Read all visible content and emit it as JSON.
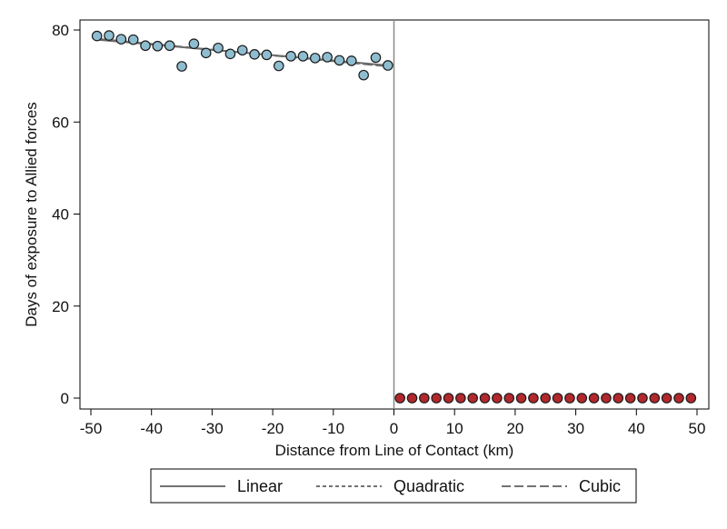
{
  "chart_data": {
    "type": "scatter",
    "title": "",
    "xlabel": "Distance from Line of Contact (km)",
    "ylabel": "Days of exposure to Allied forces",
    "xlim": [
      -50,
      50
    ],
    "ylim": [
      0,
      80
    ],
    "xticks": [
      "-50",
      "-40",
      "-30",
      "-20",
      "-10",
      "0",
      "10",
      "20",
      "30",
      "40",
      "50"
    ],
    "yticks": [
      "0",
      "20",
      "40",
      "60",
      "80"
    ],
    "cutoff": 0,
    "grid": false,
    "legend_position": "bottom",
    "series": [
      {
        "color": "#8fbdd0",
        "x": [
          -49,
          -47,
          -45,
          -43,
          -41,
          -39,
          -37,
          -35,
          -33,
          -31,
          -29,
          -27,
          -25,
          -23,
          -21,
          -19,
          -17,
          -15,
          -13,
          -11,
          -9,
          -7,
          -5,
          -3,
          -1
        ],
        "y": [
          78.7,
          78.8,
          78.0,
          77.9,
          76.6,
          76.5,
          76.6,
          72.1,
          77.0,
          75.0,
          76.1,
          74.8,
          75.6,
          74.7,
          74.6,
          72.2,
          74.3,
          74.3,
          73.9,
          74.1,
          73.4,
          73.3,
          70.2,
          74.0,
          72.3
        ]
      },
      {
        "color": "#b2282c",
        "x": [
          1,
          3,
          5,
          7,
          9,
          11,
          13,
          15,
          17,
          19,
          21,
          23,
          25,
          27,
          29,
          31,
          33,
          35,
          37,
          39,
          41,
          43,
          45,
          47,
          49
        ],
        "y": [
          0,
          0,
          0,
          0,
          0,
          0,
          0,
          0,
          0,
          0,
          0,
          0,
          0,
          0,
          0,
          0,
          0,
          0,
          0,
          0,
          0,
          0,
          0,
          0,
          0
        ]
      }
    ],
    "fits": [
      {
        "name": "Linear",
        "style": "solid",
        "x": [
          -49,
          -1
        ],
        "y": [
          77.9,
          72.3
        ]
      },
      {
        "name": "Quadratic",
        "style": "short-dash",
        "x": [
          -49,
          -1
        ],
        "y": [
          78.0,
          72.2
        ]
      },
      {
        "name": "Cubic",
        "style": "long-dash",
        "x": [
          -49,
          -1
        ],
        "y": [
          78.1,
          72.1
        ]
      }
    ],
    "legend": [
      "Linear",
      "Quadratic",
      "Cubic"
    ]
  }
}
